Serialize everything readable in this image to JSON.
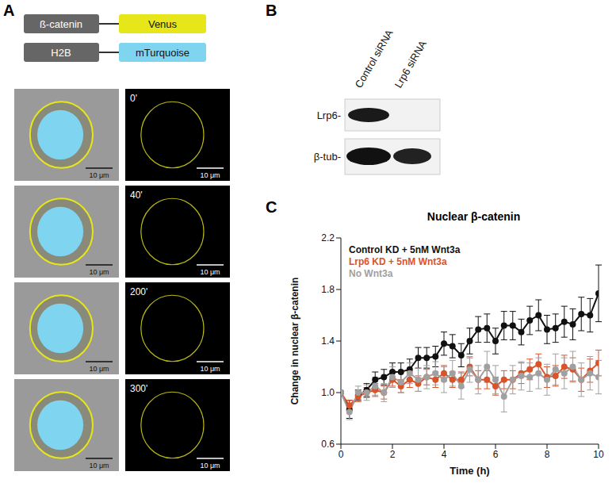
{
  "panel_labels": [
    "A",
    "B",
    "C"
  ],
  "constructs": [
    {
      "protein": "ß-catenin",
      "tag": "Venus",
      "color": "#e6e61a"
    },
    {
      "protein": "H2B",
      "tag": "mTurquoise",
      "color": "#7fd4f0"
    }
  ],
  "micrographs": {
    "times": [
      "0'",
      "40'",
      "200'",
      "300'"
    ],
    "scale_bar": "10 μm"
  },
  "western_blot": {
    "lanes": [
      "Control siRNA",
      "Lrp6 siRNA"
    ],
    "rows": [
      "Lrp6-",
      "β-tub-"
    ]
  },
  "chart_data": {
    "type": "line",
    "title": "Nuclear β-catenin",
    "x_label": "Time (h)",
    "y_label": "Change in nuclear β-catenin",
    "x": [
      0,
      0.33,
      0.67,
      1,
      1.33,
      1.67,
      2,
      2.33,
      2.67,
      3,
      3.33,
      3.67,
      4,
      4.33,
      4.67,
      5,
      5.33,
      5.67,
      6,
      6.33,
      6.67,
      7,
      7.33,
      7.67,
      8,
      8.33,
      8.67,
      9,
      9.33,
      9.67,
      10
    ],
    "series": [
      {
        "name": "Control KD + 5nM Wnt3a",
        "color": "#111111",
        "marker": "circle",
        "values": [
          1.0,
          0.87,
          0.98,
          1.02,
          1.1,
          1.12,
          1.16,
          1.16,
          1.18,
          1.27,
          1.27,
          1.28,
          1.38,
          1.36,
          1.29,
          1.4,
          1.49,
          1.5,
          1.4,
          1.52,
          1.52,
          1.47,
          1.56,
          1.6,
          1.49,
          1.5,
          1.55,
          1.53,
          1.61,
          1.6,
          1.77
        ],
        "errors": [
          0,
          0.07,
          0.04,
          0.05,
          0.06,
          0.06,
          0.07,
          0.07,
          0.08,
          0.08,
          0.08,
          0.08,
          0.09,
          0.09,
          0.09,
          0.1,
          0.1,
          0.11,
          0.1,
          0.11,
          0.11,
          0.1,
          0.11,
          0.12,
          0.11,
          0.11,
          0.12,
          0.12,
          0.13,
          0.13,
          0.22
        ]
      },
      {
        "name": "Lrp6 KD + 5nM Wnt3a",
        "color": "#d9532b",
        "marker": "circle",
        "values": [
          1.0,
          0.9,
          0.97,
          1.0,
          1.02,
          1.0,
          1.1,
          1.05,
          1.1,
          1.07,
          1.12,
          1.1,
          1.15,
          1.1,
          1.1,
          1.2,
          1.1,
          1.1,
          1.05,
          1.1,
          1.1,
          1.15,
          1.18,
          1.22,
          1.12,
          1.13,
          1.2,
          1.18,
          1.1,
          1.17,
          1.23
        ],
        "errors": [
          0,
          0.04,
          0.04,
          0.04,
          0.05,
          0.05,
          0.05,
          0.05,
          0.06,
          0.06,
          0.06,
          0.06,
          0.06,
          0.06,
          0.06,
          0.07,
          0.07,
          0.07,
          0.07,
          0.07,
          0.07,
          0.08,
          0.08,
          0.08,
          0.08,
          0.08,
          0.09,
          0.09,
          0.09,
          0.09,
          0.1
        ]
      },
      {
        "name": "No Wnt3a",
        "color": "#a0a0a0",
        "marker": "circle",
        "values": [
          1.0,
          0.85,
          1.0,
          1.0,
          1.05,
          1.0,
          1.12,
          1.08,
          1.15,
          1.1,
          1.12,
          1.15,
          1.1,
          1.15,
          1.05,
          1.18,
          1.1,
          1.2,
          1.1,
          0.97,
          1.1,
          1.13,
          1.12,
          1.15,
          1.1,
          1.18,
          1.15,
          1.2,
          1.1,
          1.15,
          1.12
        ],
        "errors": [
          0,
          0.06,
          0.05,
          0.06,
          0.07,
          0.07,
          0.08,
          0.08,
          0.08,
          0.09,
          0.09,
          0.09,
          0.1,
          0.1,
          0.1,
          0.1,
          0.11,
          0.12,
          0.11,
          0.12,
          0.11,
          0.11,
          0.11,
          0.12,
          0.12,
          0.12,
          0.12,
          0.12,
          0.13,
          0.13,
          0.13
        ]
      }
    ],
    "xlim": [
      0,
      10
    ],
    "ylim": [
      0.6,
      2.2
    ],
    "xticks": [
      0,
      2,
      4,
      6,
      8,
      10
    ],
    "yticks": [
      {
        "value": 0.6,
        "label": "0.6"
      },
      {
        "value": 1,
        "label": "1.0"
      },
      {
        "value": 1.4,
        "label": "1.4"
      },
      {
        "value": 1.8,
        "label": "1.8"
      },
      {
        "value": 2.2,
        "label": "2.2"
      }
    ],
    "legend": "upper left"
  }
}
